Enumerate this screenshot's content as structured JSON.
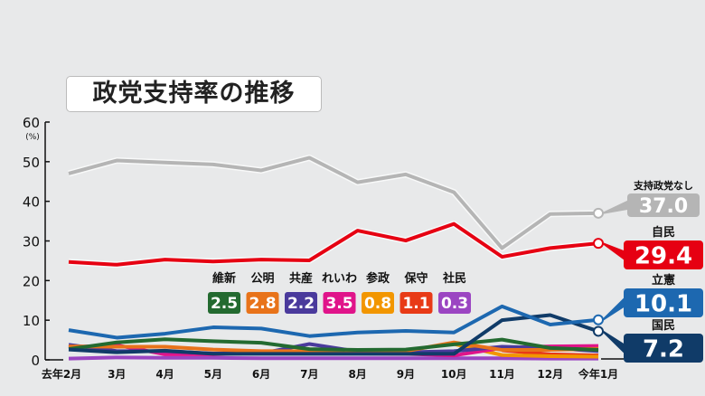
{
  "title": "政党支持率の推移",
  "chart_data": {
    "type": "line",
    "title": "政党支持率の推移",
    "ylabel": "(%)",
    "ylim": [
      0,
      60
    ],
    "yticks": [
      0,
      10,
      20,
      30,
      40,
      50,
      60
    ],
    "grid": false,
    "categories": [
      "去年2月",
      "3月",
      "4月",
      "5月",
      "6月",
      "7月",
      "8月",
      "9月",
      "10月",
      "11月",
      "12月",
      "今年1月"
    ],
    "series": [
      {
        "name": "支持政党なし",
        "color": "#b5b5b5",
        "label_value": "37.0",
        "values": [
          47.0,
          50.3,
          49.8,
          49.3,
          47.8,
          51.0,
          44.8,
          46.8,
          42.3,
          28.2,
          36.8,
          37.0
        ]
      },
      {
        "name": "自民",
        "color": "#e60012",
        "label_value": "29.4",
        "values": [
          24.7,
          24.0,
          25.3,
          24.8,
          25.3,
          25.1,
          32.6,
          30.1,
          34.3,
          26.0,
          28.2,
          29.4
        ]
      },
      {
        "name": "立憲",
        "color": "#1d68b0",
        "label_value": "10.1",
        "values": [
          7.5,
          5.6,
          6.6,
          8.2,
          7.9,
          6.0,
          6.9,
          7.3,
          6.9,
          13.5,
          8.9,
          10.1
        ]
      },
      {
        "name": "国民",
        "color": "#103b68",
        "label_value": "7.2",
        "values": [
          2.6,
          1.9,
          2.3,
          1.5,
          1.5,
          1.5,
          1.5,
          1.5,
          1.5,
          10.0,
          11.3,
          7.2
        ]
      },
      {
        "name": "維新",
        "color": "#236a30",
        "label_value": "2.5",
        "values": [
          2.7,
          4.4,
          5.2,
          4.7,
          4.3,
          2.7,
          2.5,
          2.6,
          3.9,
          5.1,
          3.0,
          2.5
        ]
      },
      {
        "name": "公明",
        "color": "#e8731a",
        "label_value": "2.8",
        "values": [
          3.4,
          3.3,
          3.3,
          2.6,
          2.2,
          2.2,
          2.2,
          2.2,
          4.4,
          2.5,
          2.5,
          2.8
        ]
      },
      {
        "name": "共産",
        "color": "#4a3a9c",
        "label_value": "2.2",
        "values": [
          3.8,
          2.2,
          2.2,
          1.6,
          1.6,
          4.0,
          2.1,
          1.9,
          2.2,
          3.3,
          3.0,
          2.2
        ]
      },
      {
        "name": "れいわ",
        "color": "#e0148a",
        "label_value": "3.5",
        "values": [
          3.2,
          3.7,
          1.4,
          1.4,
          1.7,
          1.6,
          1.6,
          1.5,
          1.1,
          3.0,
          3.4,
          3.5
        ]
      },
      {
        "name": "参政",
        "color": "#f29600",
        "label_value": "0.8",
        "values": [
          null,
          null,
          null,
          null,
          null,
          null,
          null,
          null,
          4.0,
          1.2,
          0.9,
          0.8
        ]
      },
      {
        "name": "保守",
        "color": "#e83a16",
        "label_value": "1.1",
        "values": [
          null,
          null,
          null,
          null,
          null,
          null,
          null,
          null,
          null,
          2.4,
          1.4,
          1.1
        ]
      },
      {
        "name": "社民",
        "color": "#9b45c2",
        "label_value": "0.3",
        "values": [
          0.3,
          0.6,
          0.5,
          0.5,
          0.4,
          0.4,
          0.4,
          0.4,
          0.4,
          0.4,
          0.3,
          0.3
        ]
      }
    ]
  }
}
